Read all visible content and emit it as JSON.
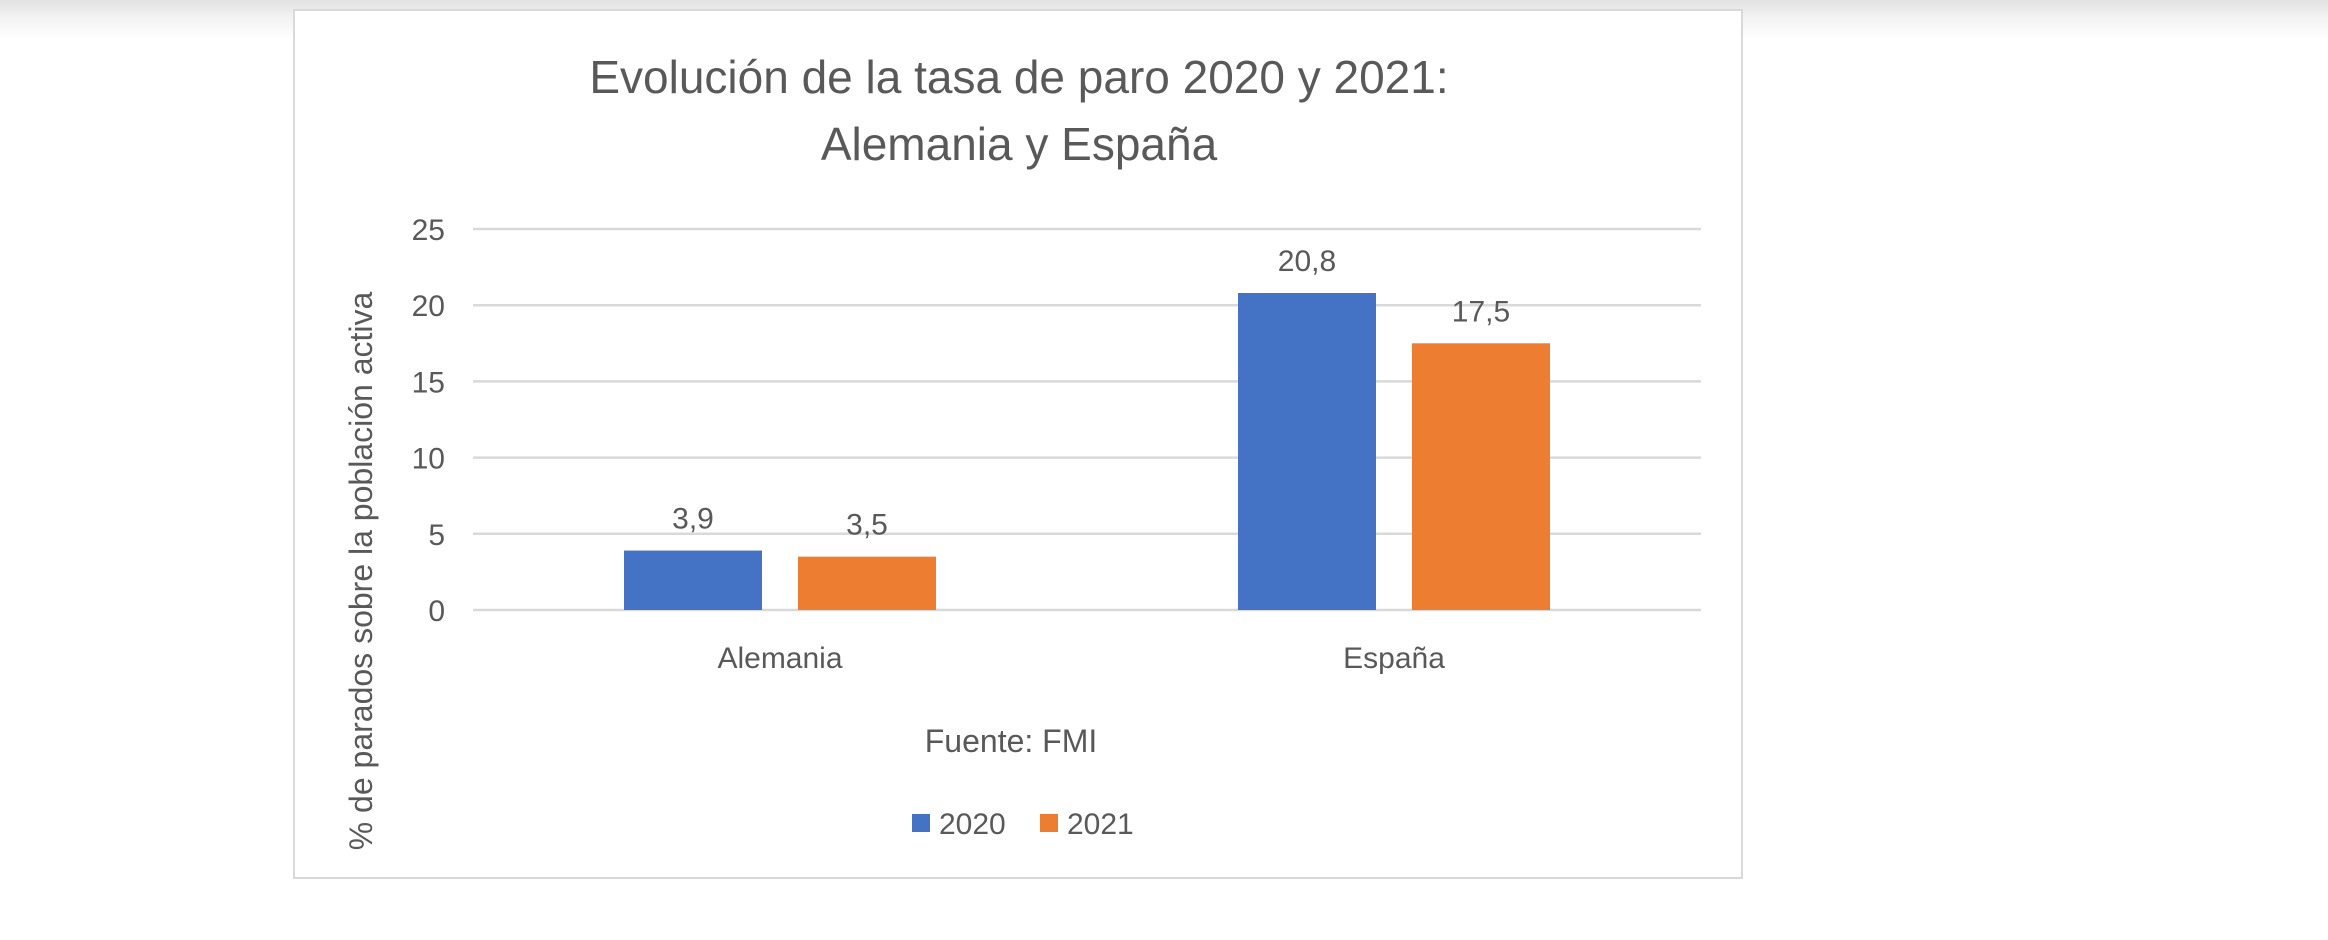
{
  "chart_data": {
    "type": "bar",
    "title": [
      "Evolución de la tasa de paro 2020 y 2021:",
      "Alemania y España"
    ],
    "categories": [
      "Alemania",
      "España"
    ],
    "series": [
      {
        "name": "2020",
        "values": [
          3.9,
          20.8
        ],
        "labels": [
          "3,9",
          "20,8"
        ],
        "color": "#4472C4"
      },
      {
        "name": "2021",
        "values": [
          3.5,
          17.5
        ],
        "labels": [
          "3,5",
          "17,5"
        ],
        "color": "#ED7D31"
      }
    ],
    "ylabel": "% de parados sobre la población activa",
    "xlabel": "Fuente: FMI",
    "ylim": [
      0,
      25
    ],
    "yticks": [
      0,
      5,
      10,
      15,
      20,
      25
    ],
    "ytick_labels": [
      "0",
      "5",
      "10",
      "15",
      "20",
      "25"
    ],
    "grid": true,
    "legend_position": "bottom",
    "gridline_color": "#d9d9d9",
    "text_color": "#595959"
  }
}
